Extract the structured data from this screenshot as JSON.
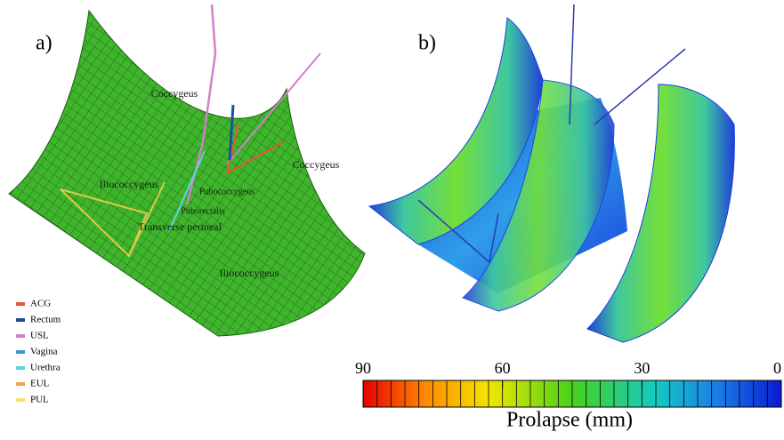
{
  "panel_a": {
    "label": "a)",
    "muscles": [
      "Coccygeus",
      "Coccygeus",
      "Iliococcygeus",
      "Pubococcygeus",
      "Puborectalis",
      "Transverse perineal",
      "Iliococcygeus"
    ],
    "legend": [
      {
        "name": "ACG",
        "color": "#e8533a"
      },
      {
        "name": "Rectum",
        "color": "#1f4e9c"
      },
      {
        "name": "USL",
        "color": "#d37fc9"
      },
      {
        "name": "Vagina",
        "color": "#3a9ad9"
      },
      {
        "name": "Urethra",
        "color": "#5ed8e0"
      },
      {
        "name": "EUL",
        "color": "#f0a24a"
      },
      {
        "name": "PUL",
        "color": "#f5e26a"
      }
    ]
  },
  "panel_b": {
    "label": "b)",
    "colorbar": {
      "title": "Prolapse (mm)",
      "range": [
        90,
        0
      ],
      "ticks": [
        90,
        60,
        30,
        0
      ]
    }
  }
}
